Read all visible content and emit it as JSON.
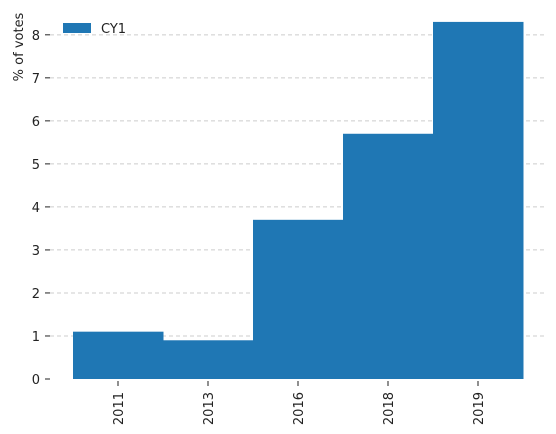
{
  "chart_data": {
    "type": "bar",
    "categories": [
      "2011",
      "2013",
      "2016",
      "2018",
      "2019"
    ],
    "series": [
      {
        "name": "CY1",
        "values": [
          1.1,
          0.9,
          3.7,
          5.7,
          8.3
        ]
      }
    ],
    "ylabel": "% of votes",
    "xlabel": "",
    "title": "",
    "ylim": [
      0,
      8.6
    ],
    "yticks": [
      0,
      1,
      2,
      3,
      4,
      5,
      6,
      7,
      8
    ],
    "grid": "y-dashed",
    "legend": "top-left",
    "bar_color": "#1f77b4"
  }
}
